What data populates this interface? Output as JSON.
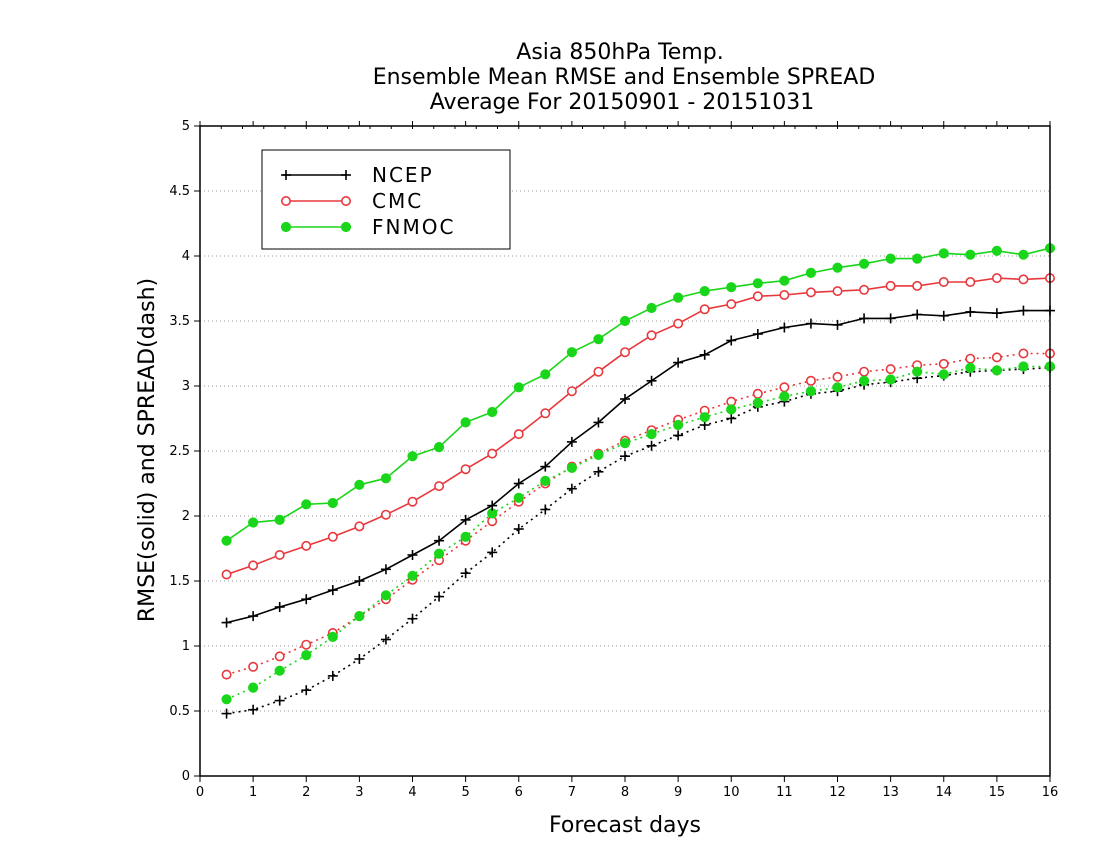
{
  "chart_data": {
    "type": "line",
    "title": [
      "Asia 850hPa Temp.",
      "Ensemble Mean RMSE and Ensemble SPREAD",
      "Average For 20150901 - 20151031"
    ],
    "xlabel": "Forecast days",
    "ylabel": "RMSE(solid) and SPREAD(dash)",
    "xlim": [
      0,
      16
    ],
    "ylim": [
      0,
      5
    ],
    "xticks": [
      0,
      1,
      2,
      3,
      4,
      5,
      6,
      7,
      8,
      9,
      10,
      11,
      12,
      13,
      14,
      15,
      16
    ],
    "yticks": [
      0,
      0.5,
      1,
      1.5,
      2,
      2.5,
      3,
      3.5,
      4,
      4.5,
      5
    ],
    "grid": "horizontal dotted",
    "legend_position": "top-left",
    "x": [
      0.5,
      1,
      1.5,
      2,
      2.5,
      3,
      3.5,
      4,
      4.5,
      5,
      5.5,
      6,
      6.5,
      7,
      7.5,
      8,
      8.5,
      9,
      9.5,
      10,
      10.5,
      11,
      11.5,
      12,
      12.5,
      13,
      13.5,
      14,
      14.5,
      15,
      15.5,
      16
    ],
    "series": [
      {
        "name": "NCEP",
        "color": "#000000",
        "marker": "plus",
        "rmse": [
          1.18,
          1.23,
          1.3,
          1.36,
          1.43,
          1.5,
          1.59,
          1.7,
          1.81,
          1.97,
          2.08,
          2.25,
          2.38,
          2.57,
          2.72,
          2.9,
          3.04,
          3.18,
          3.24,
          3.35,
          3.4,
          3.45,
          3.48,
          3.47,
          3.52,
          3.52,
          3.55,
          3.54,
          3.57,
          3.56,
          3.58,
          3.58
        ],
        "spread": [
          0.48,
          0.51,
          0.58,
          0.66,
          0.77,
          0.9,
          1.05,
          1.21,
          1.38,
          1.56,
          1.72,
          1.9,
          2.05,
          2.21,
          2.34,
          2.46,
          2.54,
          2.62,
          2.7,
          2.75,
          2.84,
          2.88,
          2.94,
          2.96,
          3.01,
          3.03,
          3.06,
          3.08,
          3.11,
          3.12,
          3.13,
          3.14
        ]
      },
      {
        "name": "CMC",
        "color": "#e8383d",
        "marker": "open-circle",
        "rmse": [
          1.55,
          1.62,
          1.7,
          1.77,
          1.84,
          1.92,
          2.01,
          2.11,
          2.23,
          2.36,
          2.48,
          2.63,
          2.79,
          2.96,
          3.11,
          3.26,
          3.39,
          3.48,
          3.59,
          3.63,
          3.69,
          3.7,
          3.72,
          3.73,
          3.74,
          3.77,
          3.77,
          3.8,
          3.8,
          3.83,
          3.82,
          3.83
        ],
        "spread": [
          0.78,
          0.84,
          0.92,
          1.01,
          1.1,
          1.23,
          1.36,
          1.51,
          1.66,
          1.81,
          1.96,
          2.11,
          2.25,
          2.38,
          2.48,
          2.58,
          2.66,
          2.74,
          2.81,
          2.88,
          2.94,
          2.99,
          3.04,
          3.07,
          3.11,
          3.13,
          3.16,
          3.17,
          3.21,
          3.22,
          3.25,
          3.25
        ]
      },
      {
        "name": "FNMOC",
        "color": "#1ad61a",
        "marker": "filled-circle",
        "rmse": [
          1.81,
          1.95,
          1.97,
          2.09,
          2.1,
          2.24,
          2.29,
          2.46,
          2.53,
          2.72,
          2.8,
          2.99,
          3.09,
          3.26,
          3.36,
          3.5,
          3.6,
          3.68,
          3.73,
          3.76,
          3.79,
          3.81,
          3.87,
          3.91,
          3.94,
          3.98,
          3.98,
          4.02,
          4.01,
          4.04,
          4.01,
          4.06
        ],
        "spread": [
          0.59,
          0.68,
          0.81,
          0.93,
          1.07,
          1.23,
          1.39,
          1.54,
          1.71,
          1.84,
          2.02,
          2.14,
          2.27,
          2.37,
          2.47,
          2.56,
          2.63,
          2.7,
          2.76,
          2.82,
          2.87,
          2.92,
          2.96,
          2.99,
          3.04,
          3.05,
          3.11,
          3.09,
          3.14,
          3.12,
          3.15,
          3.15
        ]
      }
    ]
  }
}
